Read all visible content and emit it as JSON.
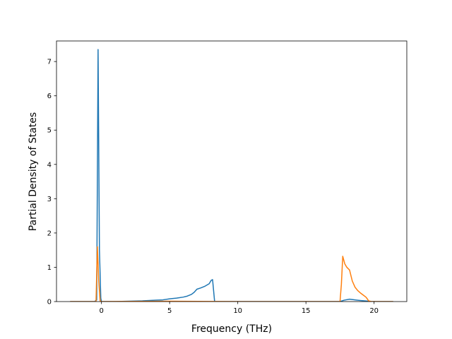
{
  "chart_data": {
    "type": "line",
    "xlabel": "Frequency (THz)",
    "ylabel": "Partial Density of States",
    "xlim": [
      -3.3,
      22.4
    ],
    "ylim": [
      0,
      7.6
    ],
    "xticks": [
      0,
      5,
      10,
      15,
      20
    ],
    "yticks": [
      0,
      1,
      2,
      3,
      4,
      5,
      6,
      7
    ],
    "grid": false,
    "legend": "none",
    "series": [
      {
        "color": "#1f77b4",
        "x": [
          -2.3,
          -0.5,
          -0.35,
          -0.25,
          -0.15,
          -0.05,
          0.0,
          1,
          2,
          3,
          4,
          4.5,
          5,
          5.5,
          6,
          6.3,
          6.6,
          6.8,
          7.0,
          7.3,
          7.6,
          7.9,
          8.05,
          8.15,
          8.3,
          10,
          17.5,
          17.8,
          18.2,
          18.6,
          19.0,
          19.3,
          19.6,
          19.8,
          21.4
        ],
        "y": [
          0,
          0,
          0.05,
          7.35,
          1.5,
          0.1,
          0,
          0,
          0.01,
          0.02,
          0.04,
          0.05,
          0.08,
          0.1,
          0.13,
          0.16,
          0.21,
          0.27,
          0.36,
          0.4,
          0.45,
          0.52,
          0.62,
          0.64,
          0,
          0,
          0,
          0.04,
          0.07,
          0.05,
          0.03,
          0.02,
          0.01,
          0,
          0
        ]
      },
      {
        "color": "#ff7f0e",
        "x": [
          -2.3,
          -0.5,
          -0.4,
          -0.3,
          -0.2,
          -0.1,
          0.0,
          5,
          10,
          15,
          17.5,
          17.6,
          17.7,
          17.85,
          18.0,
          18.2,
          18.4,
          18.6,
          18.8,
          19.0,
          19.2,
          19.4,
          19.5,
          19.6,
          19.8,
          21.4
        ],
        "y": [
          0,
          0,
          0,
          1.6,
          0.6,
          0.02,
          0,
          0.01,
          0,
          0,
          0,
          0.5,
          1.32,
          1.1,
          1.0,
          0.92,
          0.6,
          0.42,
          0.32,
          0.25,
          0.19,
          0.13,
          0.08,
          0.02,
          0,
          0
        ]
      }
    ]
  }
}
